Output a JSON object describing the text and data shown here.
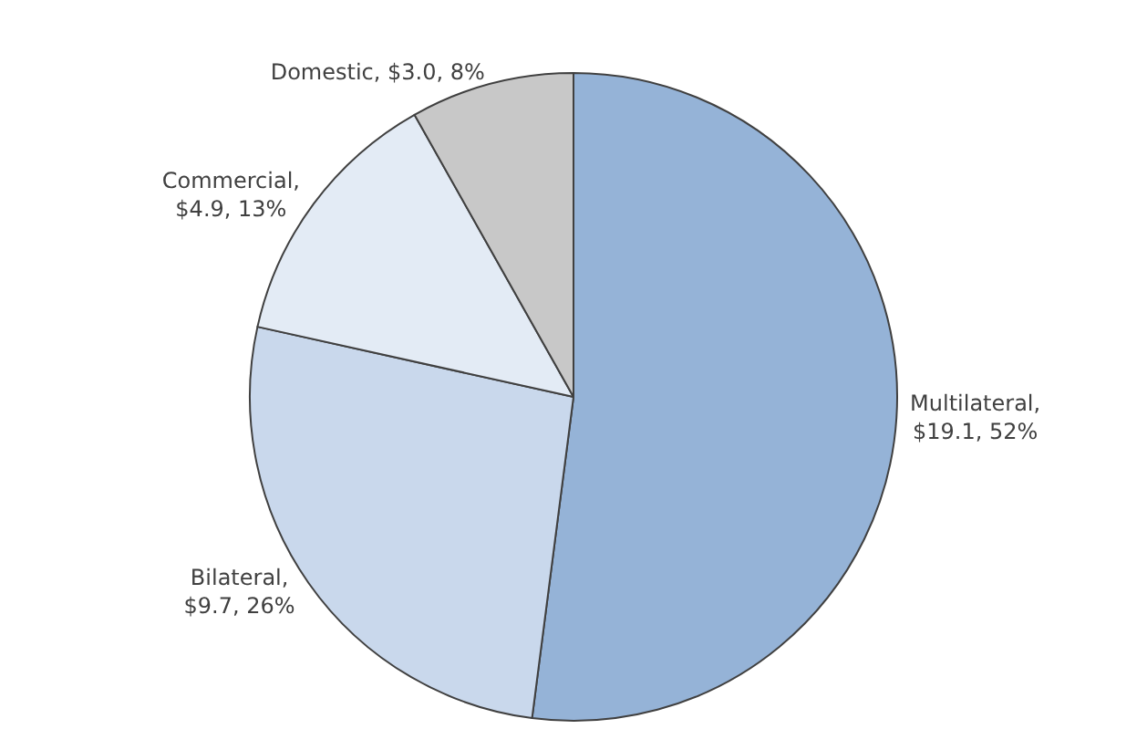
{
  "chart_data": {
    "type": "pie",
    "values": [
      19.1,
      9.7,
      4.9,
      3.0
    ],
    "value_labels": [
      "Multilateral,\n$19.1, 52%",
      "Bilateral,\n$9.7, 26%",
      "Commercial,\n$4.9, 13%",
      "Domestic, $3.0, 8%"
    ],
    "colors": [
      "#95b3d7",
      "#c9d8ec",
      "#e3ebf5",
      "#c8c8c8"
    ],
    "legend": false
  }
}
